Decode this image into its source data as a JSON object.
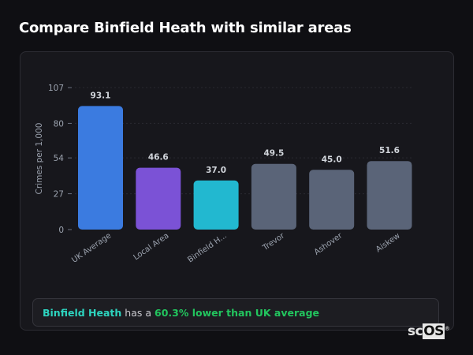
{
  "title": "Compare Binfield Heath with similar areas",
  "chart_data": {
    "type": "bar",
    "categories": [
      "UK Average",
      "Local Area",
      "Binfield H...",
      "Trevor",
      "Ashover",
      "Aiskew"
    ],
    "values": [
      93.1,
      46.6,
      37.0,
      49.5,
      45.0,
      51.6
    ],
    "data_labels": [
      "93.1",
      "46.6",
      "37.0",
      "49.5",
      "45.0",
      "51.6"
    ],
    "colors": [
      "#3b7be0",
      "#7b52d6",
      "#22b8d0",
      "#5a6478",
      "#5a6478",
      "#5a6478"
    ],
    "title": "",
    "xlabel": "",
    "ylabel": "Crimes per 1,000",
    "ylim": [
      0,
      107
    ],
    "yticks": [
      0,
      27,
      54,
      80,
      107
    ],
    "grid": true
  },
  "summary": {
    "area": "Binfield Heath",
    "connector": "has a",
    "comparison": "60.3% lower than UK average"
  },
  "logo": {
    "text_a": "sc",
    "text_b": "OS",
    "mark": "®"
  }
}
